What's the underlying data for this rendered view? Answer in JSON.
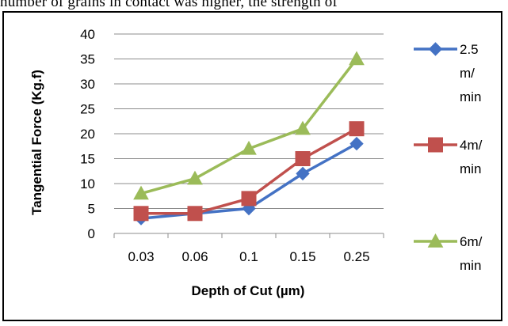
{
  "page": {
    "top_text": "number of grains in contact was higher, the strength of"
  },
  "chart_data": {
    "type": "line",
    "categories": [
      "0.03",
      "0.06",
      "0.1",
      "0.15",
      "0.25"
    ],
    "series": [
      {
        "name": "2.5 m/ min",
        "name_lines": [
          "2.5",
          "m/",
          "min"
        ],
        "color": "#4472C4",
        "marker": "diamond",
        "values": [
          3,
          4,
          5,
          12,
          18
        ]
      },
      {
        "name": "4m/ min",
        "name_lines": [
          "4m/",
          "min"
        ],
        "color": "#C0504D",
        "marker": "square",
        "values": [
          4,
          4,
          7,
          15,
          21
        ]
      },
      {
        "name": "6m/ min",
        "name_lines": [
          "6m/",
          "min"
        ],
        "color": "#9BBB59",
        "marker": "triangle",
        "values": [
          8,
          11,
          17,
          21,
          35
        ]
      }
    ],
    "xlabel": "Depth of Cut (µm)",
    "ylabel": "Tangential Force (Kg.f)",
    "ylim": [
      0,
      40
    ],
    "yticks": [
      0,
      5,
      10,
      15,
      20,
      25,
      30,
      35,
      40
    ],
    "grid": true,
    "legend": "right"
  }
}
